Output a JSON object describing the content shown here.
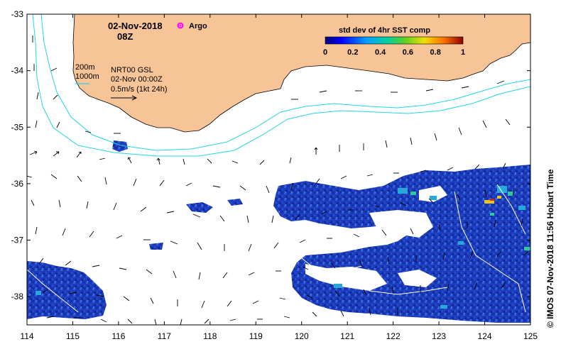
{
  "map": {
    "date": "02-Nov-2018",
    "hour": "08Z",
    "argo_label": "Argo",
    "colorbar": {
      "title": "std dev of 4hr SST comp",
      "ticks": [
        "0",
        "0.2",
        "0.4",
        "0.6",
        "0.8",
        "1"
      ],
      "range": [
        0,
        1
      ]
    },
    "contour_labels": {
      "shallow": "200m",
      "deep": "1000m"
    },
    "current_info": {
      "line1": "NRT00 GSL",
      "line2": "02-Nov 00:00Z",
      "scale": "0.5m/s (1kt 24h)"
    },
    "credit": "© IMOS 07-Nov-2018 11:56 Hobart Time",
    "lon_ticks": [
      "114",
      "115",
      "116",
      "117",
      "118",
      "119",
      "120",
      "121",
      "122",
      "123",
      "124",
      "125"
    ],
    "lat_ticks": [
      "-33",
      "-34",
      "-35",
      "-36",
      "-37",
      "-38"
    ],
    "lon_range": [
      114,
      125
    ],
    "lat_range": [
      -38.5,
      -33
    ],
    "colors": {
      "land": "#f6c497",
      "argo": "#ff00ff",
      "bathymetry": "#22d6e6",
      "ocean": "#ffffff",
      "data_low": "#1a35b8",
      "data_mid": "#26a9d9",
      "data_high": "#e0c020"
    }
  }
}
